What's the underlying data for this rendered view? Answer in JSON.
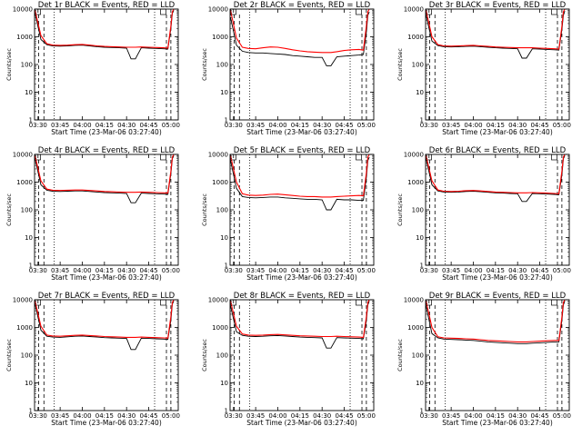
{
  "xtick_labels": [
    "03:30",
    "03:45",
    "04:00",
    "04:15",
    "04:30",
    "04:45",
    "05:00"
  ],
  "ytick_labels": [
    "1",
    "10",
    "100",
    "1000",
    "10000"
  ],
  "colors": {
    "events": "#000000",
    "lld": "#ff0000"
  },
  "chart_data": [
    {
      "type": "line",
      "title": "Det 1r  BLACK = Events, RED = LLD",
      "xlabel": "Start Time (23-Mar-06 03:27:40)",
      "ylabel": "Counts/sec",
      "x_range": [
        "03:27:40",
        "05:05:00"
      ],
      "y_scale": "log",
      "ylim": [
        1,
        10000
      ],
      "x": [
        "03:28",
        "03:32",
        "03:36",
        "03:40",
        "03:45",
        "03:50",
        "03:55",
        "04:00",
        "04:05",
        "04:10",
        "04:15",
        "04:20",
        "04:25",
        "04:30",
        "04:33",
        "04:36",
        "04:40",
        "04:45",
        "04:50",
        "04:55",
        "04:58",
        "05:00",
        "05:01",
        "05:02"
      ],
      "series": [
        {
          "name": "BLACK = Events",
          "values": [
            7000,
            800,
            520,
            470,
            460,
            470,
            490,
            500,
            470,
            440,
            420,
            410,
            400,
            390,
            160,
            160,
            400,
            390,
            380,
            370,
            360,
            2000,
            7000,
            9000
          ]
        },
        {
          "name": "RED = LLD",
          "values": [
            9000,
            1100,
            560,
            500,
            490,
            500,
            520,
            530,
            500,
            470,
            450,
            440,
            430,
            420,
            420,
            420,
            430,
            420,
            410,
            400,
            390,
            2500,
            8000,
            10000
          ]
        }
      ]
    },
    {
      "type": "line",
      "title": "Det 2r  BLACK = Events, RED = LLD",
      "xlabel": "Start Time (23-Mar-06 03:27:40)",
      "ylabel": "Counts/sec",
      "x_range": [
        "03:27:40",
        "05:05:00"
      ],
      "y_scale": "log",
      "ylim": [
        1,
        10000
      ],
      "x": [
        "03:28",
        "03:32",
        "03:36",
        "03:40",
        "03:45",
        "03:50",
        "03:55",
        "04:00",
        "04:05",
        "04:10",
        "04:15",
        "04:20",
        "04:25",
        "04:30",
        "04:33",
        "04:36",
        "04:40",
        "04:45",
        "04:50",
        "04:55",
        "04:58",
        "05:00",
        "05:01",
        "05:02"
      ],
      "series": [
        {
          "name": "BLACK = Events",
          "values": [
            5000,
            500,
            300,
            270,
            260,
            260,
            250,
            240,
            230,
            210,
            200,
            190,
            180,
            180,
            90,
            90,
            190,
            200,
            210,
            220,
            230,
            1500,
            6000,
            8000
          ]
        },
        {
          "name": "RED = LLD",
          "values": [
            9000,
            900,
            420,
            380,
            370,
            400,
            430,
            420,
            380,
            340,
            310,
            290,
            280,
            270,
            270,
            270,
            290,
            320,
            340,
            350,
            330,
            2500,
            8000,
            10000
          ]
        }
      ]
    },
    {
      "type": "line",
      "title": "Det 3r  BLACK = Events, RED = LLD",
      "xlabel": "Start Time (23-Mar-06 03:27:40)",
      "ylabel": "Counts/sec",
      "x_range": [
        "03:27:40",
        "05:05:00"
      ],
      "y_scale": "log",
      "ylim": [
        1,
        10000
      ],
      "x": [
        "03:28",
        "03:32",
        "03:36",
        "03:40",
        "03:45",
        "03:50",
        "03:55",
        "04:00",
        "04:05",
        "04:10",
        "04:15",
        "04:20",
        "04:25",
        "04:30",
        "04:33",
        "04:36",
        "04:40",
        "04:45",
        "04:50",
        "04:55",
        "04:58",
        "05:00",
        "05:01",
        "05:02"
      ],
      "series": [
        {
          "name": "BLACK = Events",
          "values": [
            6000,
            700,
            480,
            440,
            430,
            440,
            450,
            460,
            440,
            420,
            400,
            390,
            380,
            370,
            170,
            170,
            370,
            360,
            350,
            340,
            330,
            1800,
            6000,
            8500
          ]
        },
        {
          "name": "RED = LLD",
          "values": [
            9000,
            1000,
            520,
            470,
            460,
            470,
            480,
            490,
            470,
            450,
            430,
            420,
            410,
            400,
            400,
            400,
            400,
            390,
            380,
            370,
            360,
            2400,
            8000,
            10000
          ]
        }
      ]
    },
    {
      "type": "line",
      "title": "Det 4r  BLACK = Events, RED = LLD",
      "xlabel": "Start Time (23-Mar-06 03:27:40)",
      "ylabel": "Counts/sec",
      "x_range": [
        "03:27:40",
        "05:05:00"
      ],
      "y_scale": "log",
      "ylim": [
        1,
        10000
      ],
      "x": [
        "03:28",
        "03:32",
        "03:36",
        "03:40",
        "03:45",
        "03:50",
        "03:55",
        "04:00",
        "04:05",
        "04:10",
        "04:15",
        "04:20",
        "04:25",
        "04:30",
        "04:33",
        "04:36",
        "04:40",
        "04:45",
        "04:50",
        "04:55",
        "04:58",
        "05:00",
        "05:01",
        "05:02"
      ],
      "series": [
        {
          "name": "BLACK = Events",
          "values": [
            7000,
            800,
            510,
            470,
            460,
            470,
            480,
            480,
            460,
            440,
            420,
            410,
            400,
            390,
            180,
            180,
            400,
            390,
            380,
            370,
            360,
            2000,
            7000,
            9000
          ]
        },
        {
          "name": "RED = LLD",
          "values": [
            9000,
            1100,
            560,
            510,
            500,
            510,
            520,
            520,
            500,
            480,
            460,
            450,
            440,
            430,
            430,
            430,
            440,
            430,
            420,
            410,
            400,
            2500,
            8000,
            10000
          ]
        }
      ]
    },
    {
      "type": "line",
      "title": "Det 5r  BLACK = Events, RED = LLD",
      "xlabel": "Start Time (23-Mar-06 03:27:40)",
      "ylabel": "Counts/sec",
      "x_range": [
        "03:27:40",
        "05:05:00"
      ],
      "y_scale": "log",
      "ylim": [
        1,
        10000
      ],
      "x": [
        "03:28",
        "03:32",
        "03:36",
        "03:40",
        "03:45",
        "03:50",
        "03:55",
        "04:00",
        "04:05",
        "04:10",
        "04:15",
        "04:20",
        "04:25",
        "04:30",
        "04:33",
        "04:36",
        "04:40",
        "04:45",
        "04:50",
        "04:55",
        "04:58",
        "05:00",
        "05:01",
        "05:02"
      ],
      "series": [
        {
          "name": "BLACK = Events",
          "values": [
            6000,
            600,
            300,
            280,
            270,
            280,
            290,
            290,
            270,
            260,
            250,
            240,
            240,
            230,
            100,
            100,
            240,
            230,
            230,
            220,
            220,
            1500,
            6000,
            8000
          ]
        },
        {
          "name": "RED = LLD",
          "values": [
            9000,
            1000,
            380,
            340,
            330,
            340,
            360,
            370,
            350,
            330,
            310,
            300,
            300,
            290,
            290,
            290,
            300,
            310,
            320,
            330,
            320,
            2200,
            8000,
            10000
          ]
        }
      ]
    },
    {
      "type": "line",
      "title": "Det 6r  BLACK = Events, RED = LLD",
      "xlabel": "Start Time (23-Mar-06 03:27:40)",
      "ylabel": "Counts/sec",
      "x_range": [
        "03:27:40",
        "05:05:00"
      ],
      "y_scale": "log",
      "ylim": [
        1,
        10000
      ],
      "x": [
        "03:28",
        "03:32",
        "03:36",
        "03:40",
        "03:45",
        "03:50",
        "03:55",
        "04:00",
        "04:05",
        "04:10",
        "04:15",
        "04:20",
        "04:25",
        "04:30",
        "04:33",
        "04:36",
        "04:40",
        "04:45",
        "04:50",
        "04:55",
        "04:58",
        "05:00",
        "05:01",
        "05:02"
      ],
      "series": [
        {
          "name": "BLACK = Events",
          "values": [
            7000,
            800,
            480,
            440,
            430,
            440,
            460,
            470,
            450,
            430,
            410,
            400,
            390,
            380,
            200,
            200,
            390,
            380,
            370,
            360,
            350,
            1800,
            7000,
            9000
          ]
        },
        {
          "name": "RED = LLD",
          "values": [
            9000,
            1100,
            520,
            470,
            460,
            470,
            490,
            500,
            480,
            460,
            440,
            430,
            420,
            410,
            410,
            410,
            420,
            410,
            400,
            390,
            380,
            2500,
            8000,
            10000
          ]
        }
      ]
    },
    {
      "type": "line",
      "title": "Det 7r  BLACK = Events, RED = LLD",
      "xlabel": "Start Time (23-Mar-06 03:27:40)",
      "ylabel": "Counts/sec",
      "x_range": [
        "03:27:40",
        "05:05:00"
      ],
      "y_scale": "log",
      "ylim": [
        1,
        10000
      ],
      "x": [
        "03:28",
        "03:32",
        "03:36",
        "03:40",
        "03:45",
        "03:50",
        "03:55",
        "04:00",
        "04:05",
        "04:10",
        "04:15",
        "04:20",
        "04:25",
        "04:30",
        "04:33",
        "04:36",
        "04:40",
        "04:45",
        "04:50",
        "04:55",
        "04:58",
        "05:00",
        "05:01",
        "05:02"
      ],
      "series": [
        {
          "name": "BLACK = Events",
          "values": [
            7000,
            800,
            480,
            450,
            440,
            460,
            480,
            490,
            470,
            450,
            430,
            420,
            410,
            400,
            160,
            160,
            410,
            400,
            390,
            380,
            370,
            1800,
            7000,
            9000
          ]
        },
        {
          "name": "RED = LLD",
          "values": [
            9000,
            1100,
            530,
            490,
            480,
            500,
            520,
            530,
            510,
            490,
            470,
            460,
            450,
            440,
            440,
            440,
            450,
            440,
            430,
            420,
            410,
            2500,
            8000,
            10000
          ]
        }
      ]
    },
    {
      "type": "line",
      "title": "Det 8r  BLACK = Events, RED = LLD",
      "xlabel": "Start Time (23-Mar-06 03:27:40)",
      "ylabel": "Counts/sec",
      "x_range": [
        "03:27:40",
        "05:05:00"
      ],
      "y_scale": "log",
      "ylim": [
        1,
        10000
      ],
      "x": [
        "03:28",
        "03:32",
        "03:36",
        "03:40",
        "03:45",
        "03:50",
        "03:55",
        "04:00",
        "04:05",
        "04:10",
        "04:15",
        "04:20",
        "04:25",
        "04:30",
        "04:33",
        "04:36",
        "04:40",
        "04:45",
        "04:50",
        "04:55",
        "04:58",
        "05:00",
        "05:01",
        "05:02"
      ],
      "series": [
        {
          "name": "BLACK = Events",
          "values": [
            6000,
            700,
            520,
            480,
            470,
            480,
            500,
            510,
            490,
            470,
            450,
            440,
            430,
            420,
            180,
            180,
            430,
            420,
            410,
            400,
            390,
            1800,
            6500,
            9000
          ]
        },
        {
          "name": "RED = LLD",
          "values": [
            9000,
            1100,
            580,
            530,
            520,
            530,
            550,
            560,
            540,
            520,
            500,
            490,
            480,
            470,
            470,
            470,
            480,
            470,
            460,
            450,
            440,
            2500,
            8000,
            10000
          ]
        }
      ]
    },
    {
      "type": "line",
      "title": "Det 9r  BLACK = Events, RED = LLD",
      "xlabel": "Start Time (23-Mar-06 03:27:40)",
      "ylabel": "Counts/sec",
      "x_range": [
        "03:27:40",
        "05:05:00"
      ],
      "y_scale": "log",
      "ylim": [
        1,
        10000
      ],
      "x": [
        "03:28",
        "03:32",
        "03:36",
        "03:40",
        "03:45",
        "03:50",
        "03:55",
        "04:00",
        "04:05",
        "04:10",
        "04:15",
        "04:20",
        "04:25",
        "04:30",
        "04:33",
        "04:36",
        "04:40",
        "04:45",
        "04:50",
        "04:55",
        "04:58",
        "05:00",
        "05:01",
        "05:02"
      ],
      "series": [
        {
          "name": "BLACK = Events",
          "values": [
            6000,
            600,
            420,
            380,
            370,
            360,
            350,
            340,
            320,
            300,
            290,
            280,
            270,
            260,
            260,
            260,
            270,
            280,
            290,
            300,
            300,
            1800,
            6500,
            9000
          ]
        },
        {
          "name": "RED = LLD",
          "values": [
            9000,
            1000,
            460,
            420,
            410,
            400,
            390,
            380,
            360,
            340,
            330,
            320,
            310,
            300,
            300,
            300,
            310,
            320,
            330,
            340,
            340,
            2400,
            8000,
            10000
          ]
        }
      ]
    }
  ]
}
